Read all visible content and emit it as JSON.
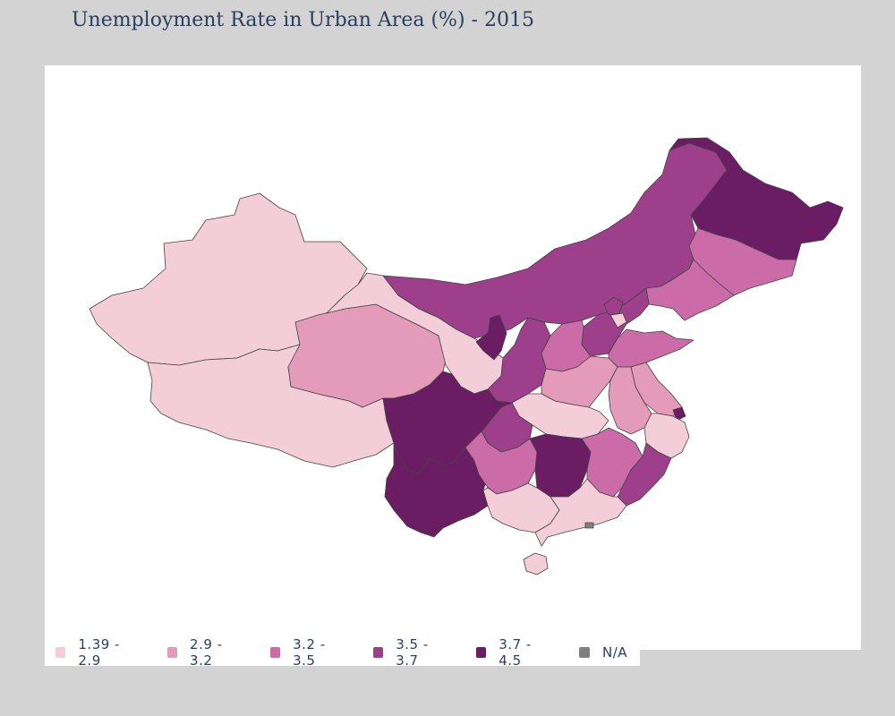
{
  "title": "Unemployment Rate in Urban Area (%) - 2015",
  "colors": {
    "c1": "#f3cdd8",
    "c2": "#e39bb9",
    "c3": "#cb6ba8",
    "c4": "#9e3f8b",
    "c5": "#6a1d63",
    "na": "#7f7f7f"
  },
  "legend": [
    {
      "label": "1.39 - 2.9",
      "color_key": "c1"
    },
    {
      "label": "2.9 - 3.2",
      "color_key": "c2"
    },
    {
      "label": "3.2 - 3.5",
      "color_key": "c3"
    },
    {
      "label": "3.5 - 3.7",
      "color_key": "c4"
    },
    {
      "label": "3.7 - 4.5",
      "color_key": "c5"
    },
    {
      "label": "N/A",
      "color_key": "na"
    }
  ],
  "regions": [
    {
      "id": "xinjiang",
      "class": "c1"
    },
    {
      "id": "tibet",
      "class": "c1"
    },
    {
      "id": "gansu",
      "class": "c1"
    },
    {
      "id": "qinghai",
      "class": "c2"
    },
    {
      "id": "inner-mongolia",
      "class": "c4"
    },
    {
      "id": "heilongjiang",
      "class": "c5"
    },
    {
      "id": "jilin",
      "class": "c3"
    },
    {
      "id": "liaoning",
      "class": "c3"
    },
    {
      "id": "hebei",
      "class": "c4"
    },
    {
      "id": "beijing",
      "class": "c4"
    },
    {
      "id": "tianjin",
      "class": "c1"
    },
    {
      "id": "shanxi",
      "class": "c3"
    },
    {
      "id": "shaanxi",
      "class": "c4"
    },
    {
      "id": "ningxia",
      "class": "c5"
    },
    {
      "id": "henan",
      "class": "c2"
    },
    {
      "id": "shandong",
      "class": "c3"
    },
    {
      "id": "jiangsu",
      "class": "c2"
    },
    {
      "id": "shanghai",
      "class": "c5"
    },
    {
      "id": "anhui",
      "class": "c2"
    },
    {
      "id": "zhejiang",
      "class": "c1"
    },
    {
      "id": "hubei",
      "class": "c1"
    },
    {
      "id": "chongqing",
      "class": "c4"
    },
    {
      "id": "sichuan",
      "class": "c5"
    },
    {
      "id": "yunnan",
      "class": "c5"
    },
    {
      "id": "guizhou",
      "class": "c3"
    },
    {
      "id": "hunan",
      "class": "c5"
    },
    {
      "id": "jiangxi",
      "class": "c3"
    },
    {
      "id": "fujian",
      "class": "c4"
    },
    {
      "id": "guangxi",
      "class": "c1"
    },
    {
      "id": "guangdong",
      "class": "c1"
    },
    {
      "id": "hainan",
      "class": "c1"
    },
    {
      "id": "hongkong",
      "class": "na"
    }
  ]
}
